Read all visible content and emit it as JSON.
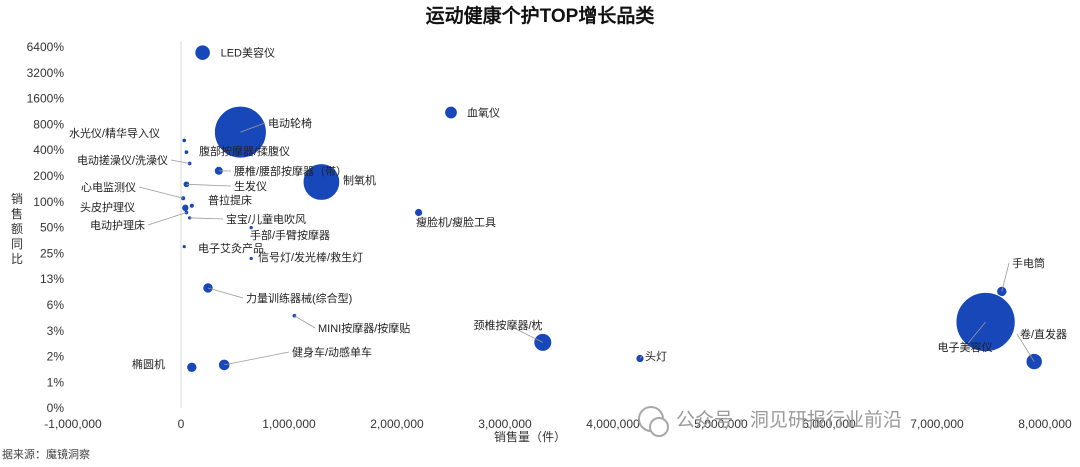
{
  "chart_data": {
    "type": "scatter",
    "subtype": "bubble",
    "title": "运动健康个护TOP增长品类",
    "xlabel": "销售量（件）",
    "ylabel": "销售额同比",
    "xlim": [
      -1000000,
      8000000
    ],
    "x_ticks": [
      -1000000,
      0,
      1000000,
      2000000,
      3000000,
      4000000,
      5000000,
      6000000,
      7000000,
      8000000
    ],
    "x_tick_labels": [
      "-1,000,000",
      "0",
      "1,000,000",
      "2,000,000",
      "3,000,000",
      "4,000,000",
      "5,000,000",
      "6,000,000",
      "7,000,000",
      "8,000,000"
    ],
    "y_scale": "log2-like (labelled levels)",
    "y_tick_labels": [
      "0%",
      "1%",
      "2%",
      "3%",
      "6%",
      "13%",
      "25%",
      "50%",
      "100%",
      "200%",
      "400%",
      "800%",
      "1600%",
      "3200%",
      "6400%"
    ],
    "bubble_color": "#1747b9",
    "points": [
      {
        "label": "LED美容仪",
        "x": 200000,
        "y": 5500,
        "size": 90000
      },
      {
        "label": "血氧仪",
        "x": 2500000,
        "y": 1100,
        "size": 60000
      },
      {
        "label": "电动轮椅",
        "x": 550000,
        "y": 650,
        "size": 1000000
      },
      {
        "label": "水光仪/精华导入仪",
        "x": 30000,
        "y": 520,
        "size": 5000
      },
      {
        "label": "腹部按摩器/揉腹仪",
        "x": 50000,
        "y": 380,
        "size": 5000
      },
      {
        "label": "电动搓澡仪/洗澡仪",
        "x": 80000,
        "y": 280,
        "size": 5000
      },
      {
        "label": "腰椎/腰部按摩器（带）",
        "x": 350000,
        "y": 230,
        "size": 30000
      },
      {
        "label": "制氧机",
        "x": 1300000,
        "y": 170,
        "size": 500000
      },
      {
        "label": "生发仪",
        "x": 50000,
        "y": 160,
        "size": 12000
      },
      {
        "label": "心电监测仪",
        "x": 20000,
        "y": 110,
        "size": 6000
      },
      {
        "label": "普拉提床",
        "x": 100000,
        "y": 90,
        "size": 6000
      },
      {
        "label": "头皮护理仪",
        "x": 40000,
        "y": 85,
        "size": 15000
      },
      {
        "label": "电动护理床",
        "x": 50000,
        "y": 75,
        "size": 5000
      },
      {
        "label": "瘦脸机/瘦脸工具",
        "x": 2200000,
        "y": 75,
        "size": 25000
      },
      {
        "label": "宝宝/儿童电吹风",
        "x": 80000,
        "y": 65,
        "size": 4000
      },
      {
        "label": "手部/手臂按摩器",
        "x": 650000,
        "y": 50,
        "size": 4000
      },
      {
        "label": "电子艾灸产品",
        "x": 30000,
        "y": 30,
        "size": 3000
      },
      {
        "label": "信号灯/发光棒/救生灯",
        "x": 650000,
        "y": 22,
        "size": 3000
      },
      {
        "label": "力量训练器械(综合型)",
        "x": 250000,
        "y": 10,
        "size": 40000
      },
      {
        "label": "MINI按摩器/按摩贴",
        "x": 1050000,
        "y": 4.5,
        "size": 5000
      },
      {
        "label": "颈椎按摩器/枕",
        "x": 3350000,
        "y": 2.5,
        "size": 120000
      },
      {
        "label": "头灯",
        "x": 4250000,
        "y": 1.9,
        "size": 25000
      },
      {
        "label": "健身车/动感单车",
        "x": 400000,
        "y": 1.6,
        "size": 50000
      },
      {
        "label": "椭圆机",
        "x": 100000,
        "y": 1.5,
        "size": 40000
      },
      {
        "label": "手电筒",
        "x": 7600000,
        "y": 9,
        "size": 40000
      },
      {
        "label": "电子美容仪",
        "x": 7450000,
        "y": 3.8,
        "size": 1300000
      },
      {
        "label": "卷/直发器",
        "x": 7900000,
        "y": 1.75,
        "size": 100000
      }
    ],
    "grid": false,
    "legend": "none"
  },
  "footer": {
    "source": "据来源：魔镜洞察",
    "watermark": "公众号 · 洞见研报行业前沿"
  }
}
